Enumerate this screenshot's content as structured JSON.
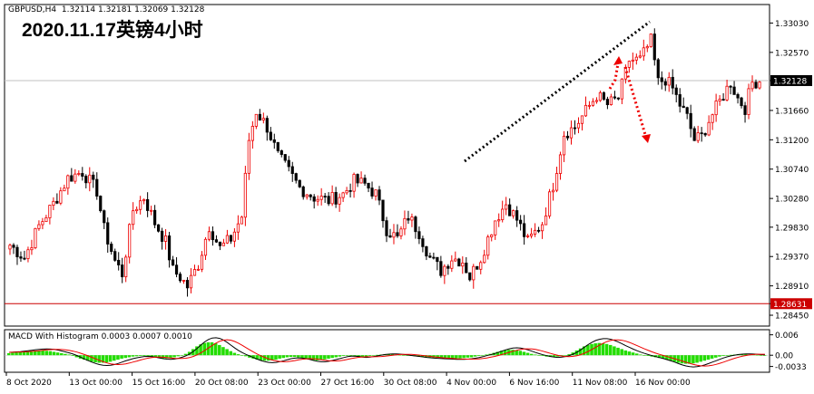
{
  "header": {
    "symbol": "GBPUSD,H4",
    "ohlc": "1.32114 1.32181 1.32069 1.32128"
  },
  "overlay_title": "2020.11.17英镑4小时",
  "macd": {
    "label": "MACD With Histogram 0.0003 0.0007 0.0010",
    "y_ticks": [
      "0.006",
      "0.00",
      "-0.0033"
    ],
    "ylim": [
      -0.005,
      0.0075
    ]
  },
  "chart_data": {
    "type": "candlestick",
    "title": "",
    "xlabel": "",
    "ylabel": "",
    "ylim": [
      1.2828,
      1.3332
    ],
    "y_ticks": [
      "1.33030",
      "1.32570",
      "1.32128",
      "1.31660",
      "1.31200",
      "1.30740",
      "1.30280",
      "1.29830",
      "1.29370",
      "1.28910",
      "1.28631",
      "1.28450"
    ],
    "x_ticks": [
      "8 Oct 2020",
      "13 Oct 00:00",
      "15 Oct 16:00",
      "20 Oct 08:00",
      "23 Oct 00:00",
      "27 Oct 16:00",
      "30 Oct 08:00",
      "4 Nov 00:00",
      "6 Nov 16:00",
      "11 Nov 08:00",
      "16 Nov 00:00"
    ],
    "current_price": "1.32128",
    "support_line": "1.28631",
    "trend_line": {
      "from": [
        1.3095
      ],
      "to": [
        1.3315
      ]
    },
    "anchors": [
      [
        0,
        1.2955
      ],
      [
        4,
        1.2935
      ],
      [
        8,
        1.2985
      ],
      [
        12,
        1.302
      ],
      [
        16,
        1.306
      ],
      [
        20,
        1.307
      ],
      [
        24,
        1.304
      ],
      [
        26,
        1.298
      ],
      [
        29,
        1.293
      ],
      [
        31,
        1.291
      ],
      [
        34,
        1.301
      ],
      [
        37,
        1.303
      ],
      [
        40,
        1.299
      ],
      [
        43,
        1.296
      ],
      [
        45,
        1.2915
      ],
      [
        47,
        1.2905
      ],
      [
        49,
        1.289
      ],
      [
        52,
        1.2925
      ],
      [
        55,
        1.2985
      ],
      [
        58,
        1.295
      ],
      [
        61,
        1.2965
      ],
      [
        64,
        1.3
      ],
      [
        66,
        1.312
      ],
      [
        68,
        1.3165
      ],
      [
        71,
        1.314
      ],
      [
        74,
        1.3095
      ],
      [
        77,
        1.307
      ],
      [
        80,
        1.3045
      ],
      [
        84,
        1.303
      ],
      [
        88,
        1.3025
      ],
      [
        92,
        1.3035
      ],
      [
        95,
        1.3055
      ],
      [
        98,
        1.305
      ],
      [
        101,
        1.3035
      ],
      [
        104,
        1.298
      ],
      [
        107,
        1.2965
      ],
      [
        110,
        1.3
      ],
      [
        113,
        1.2975
      ],
      [
        116,
        1.2935
      ],
      [
        119,
        1.2915
      ],
      [
        122,
        1.2935
      ],
      [
        125,
        1.293
      ],
      [
        127,
        1.2905
      ],
      [
        130,
        1.2935
      ],
      [
        134,
        1.2995
      ],
      [
        137,
        1.302
      ],
      [
        140,
        1.2995
      ],
      [
        143,
        1.296
      ],
      [
        145,
        1.2975
      ],
      [
        147,
        1.299
      ],
      [
        150,
        1.305
      ],
      [
        153,
        1.313
      ],
      [
        156,
        1.314
      ],
      [
        159,
        1.3165
      ],
      [
        162,
        1.319
      ],
      [
        165,
        1.3175
      ],
      [
        168,
        1.3185
      ],
      [
        171,
        1.3245
      ],
      [
        174,
        1.3245
      ],
      [
        177,
        1.3275
      ],
      [
        179,
        1.321
      ],
      [
        181,
        1.3215
      ],
      [
        183,
        1.32
      ],
      [
        185,
        1.3175
      ],
      [
        187,
        1.3155
      ],
      [
        189,
        1.312
      ],
      [
        191,
        1.3125
      ],
      [
        193,
        1.315
      ],
      [
        195,
        1.317
      ],
      [
        197,
        1.319
      ],
      [
        199,
        1.321
      ],
      [
        201,
        1.3185
      ],
      [
        203,
        1.317
      ],
      [
        205,
        1.321
      ],
      [
        207,
        1.3213
      ]
    ],
    "histogram": [
      0.0006,
      0.0007,
      0.0008,
      0.0009,
      0.001,
      0.0011,
      0.0012,
      0.0013,
      0.0013,
      0.0014,
      0.0013,
      0.0012,
      0.001,
      0.0008,
      0.0006,
      0.0004,
      0.0002,
      -0.0002,
      -0.0006,
      -0.001,
      -0.0013,
      -0.0016,
      -0.0019,
      -0.0021,
      -0.0022,
      -0.0022,
      -0.0021,
      -0.0019,
      -0.0016,
      -0.0013,
      -0.001,
      -0.0008,
      -0.0006,
      -0.0004,
      -0.0003,
      -0.0002,
      -0.0002,
      -0.0003,
      -0.0005,
      -0.0007,
      -0.0008,
      -0.0009,
      -0.0009,
      -0.0008,
      -0.0006,
      -0.0003,
      0.0,
      0.0004,
      0.001,
      0.0018,
      0.0026,
      0.0032,
      0.0036,
      0.0038,
      0.0038,
      0.0035,
      0.003,
      0.0024,
      0.0018,
      0.0012,
      0.0007,
      0.0003,
      0.0,
      -0.0003,
      -0.0007,
      -0.001,
      -0.0013,
      -0.0015,
      -0.0016,
      -0.0016,
      -0.0015,
      -0.0013,
      -0.001,
      -0.0008,
      -0.0006,
      -0.0005,
      -0.0005,
      -0.0006,
      -0.0008,
      -0.001,
      -0.0012,
      -0.0014,
      -0.0015,
      -0.0014,
      -0.0012,
      -0.001,
      -0.0008,
      -0.0006,
      -0.0004,
      -0.0002,
      0.0,
      -0.0002,
      -0.0004,
      -0.0005,
      -0.0005,
      -0.0004,
      -0.0002,
      0.0,
      0.0001,
      0.0002,
      0.0003,
      0.0003,
      0.0003,
      0.0002,
      0.0001,
      0.0,
      -0.0001,
      -0.0002,
      -0.0003,
      -0.0004,
      -0.0005,
      -0.0006,
      -0.0006,
      -0.0007,
      -0.0007,
      -0.0008,
      -0.0008,
      -0.0008,
      -0.0009,
      -0.0009,
      -0.0009,
      -0.0008,
      -0.0007,
      -0.0006,
      -0.0004,
      -0.0002,
      0.0,
      0.0002,
      0.0004,
      0.0007,
      0.001,
      0.0013,
      0.0015,
      0.0016,
      0.0016,
      0.0015,
      0.0013,
      0.001,
      0.0007,
      0.0004,
      0.0002,
      0.0,
      -0.0002,
      -0.0004,
      -0.0005,
      -0.0005,
      -0.0004,
      -0.0002,
      0.0,
      0.0003,
      0.0008,
      0.0014,
      0.002,
      0.0026,
      0.003,
      0.0033,
      0.0035,
      0.0036,
      0.0035,
      0.0033,
      0.003,
      0.0026,
      0.0022,
      0.0018,
      0.0014,
      0.0011,
      0.0008,
      0.0005,
      0.0002,
      0.0,
      -0.0002,
      -0.0004,
      -0.0006,
      -0.0008,
      -0.001,
      -0.0013,
      -0.0016,
      -0.0019,
      -0.0022,
      -0.0024,
      -0.0025,
      -0.0025,
      -0.0024,
      -0.0022,
      -0.0019,
      -0.0016,
      -0.0013,
      -0.001,
      -0.0007,
      -0.0004,
      -0.0002,
      0.0,
      0.0001,
      0.0002,
      0.0003,
      0.0003,
      0.0003,
      0.0002,
      0.0002,
      0.0001,
      0.0,
      0.0
    ],
    "colors": {
      "bull": "#ee0000",
      "bear": "#000000",
      "hist": "#22dd00",
      "signal": "#ee0000",
      "macd_line": "#000000",
      "hline": "#cc0000",
      "arrow": "#ee0000"
    }
  }
}
